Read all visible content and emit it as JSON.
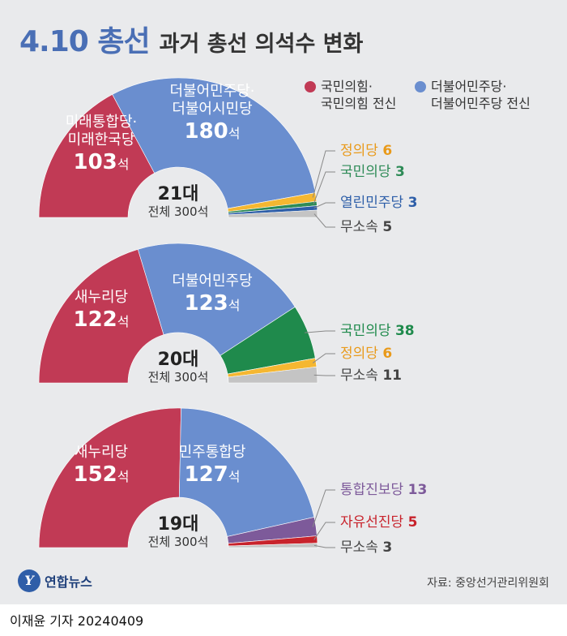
{
  "header": {
    "main": "4.10 총선",
    "sub": "과거 총선 의석수 변화"
  },
  "legend": [
    {
      "lines": [
        "국민의힘·",
        "국민의힘 전신"
      ],
      "color": "#c13a55"
    },
    {
      "lines": [
        "더불어민주당·",
        "더불어민주당 전신"
      ],
      "color": "#6a8ecf"
    }
  ],
  "chart_data": [
    {
      "type": "pie",
      "title": "21대",
      "total_label": "전체 300석",
      "total": 300,
      "series": [
        {
          "name": "미래통합당·미래한국당",
          "value": 103,
          "color": "#c13a55"
        },
        {
          "name": "더불어민주당·더불어시민당",
          "value": 180,
          "color": "#6a8ecf"
        },
        {
          "name": "정의당",
          "value": 6,
          "color": "#f5b731"
        },
        {
          "name": "국민의당",
          "value": 3,
          "color": "#2e8b57"
        },
        {
          "name": "열린민주당",
          "value": 3,
          "color": "#2d5ea8"
        },
        {
          "name": "무소속",
          "value": 5,
          "color": "#c4c4c4"
        }
      ]
    },
    {
      "type": "pie",
      "title": "20대",
      "total_label": "전체 300석",
      "total": 300,
      "series": [
        {
          "name": "새누리당",
          "value": 122,
          "color": "#c13a55"
        },
        {
          "name": "더불어민주당",
          "value": 123,
          "color": "#6a8ecf"
        },
        {
          "name": "국민의당",
          "value": 38,
          "color": "#1f8a4c"
        },
        {
          "name": "정의당",
          "value": 6,
          "color": "#f5b731"
        },
        {
          "name": "무소속",
          "value": 11,
          "color": "#c4c4c4"
        }
      ]
    },
    {
      "type": "pie",
      "title": "19대",
      "total_label": "전체 300석",
      "total": 300,
      "series": [
        {
          "name": "새누리당",
          "value": 152,
          "color": "#c13a55"
        },
        {
          "name": "민주통합당",
          "value": 127,
          "color": "#6a8ecf"
        },
        {
          "name": "통합진보당",
          "value": 13,
          "color": "#7d5a9a"
        },
        {
          "name": "자유선진당",
          "value": 5,
          "color": "#c8232c"
        },
        {
          "name": "무소속",
          "value": 3,
          "color": "#c4c4c4"
        }
      ]
    }
  ],
  "seat_unit": "석",
  "footer": {
    "logo": "연합뉴스",
    "source": "자료: 중앙선거관리위원회",
    "credit": "이재윤 기자  20240409"
  }
}
